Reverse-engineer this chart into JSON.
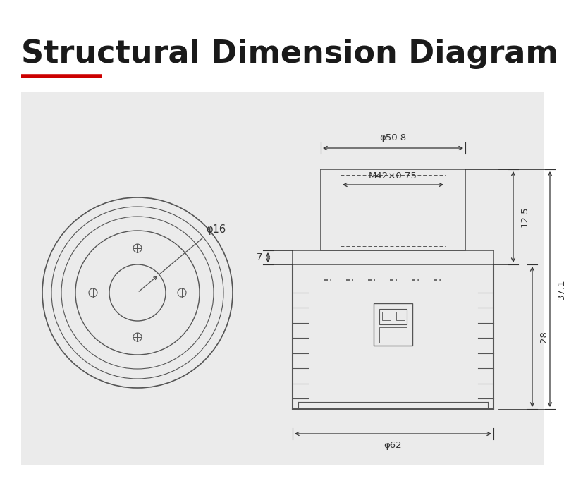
{
  "title": "Structural Dimension Diagram",
  "title_color": "#1a1a1a",
  "title_underline_color": "#cc0000",
  "bg_color": "#ffffff",
  "diagram_bg_color": "#ebebeb",
  "line_color": "#555555",
  "dim_color": "#333333",
  "dim_fontsize": 9.5,
  "title_fontsize": 32,
  "annotations": {
    "phi16": "φ16",
    "phi50_8": "φ50.8",
    "phi62": "φ62",
    "m42": "M42×0.75",
    "dim7": "7",
    "dim12_5": "12.5",
    "dim28": "28",
    "dim37_1": "37.1"
  }
}
